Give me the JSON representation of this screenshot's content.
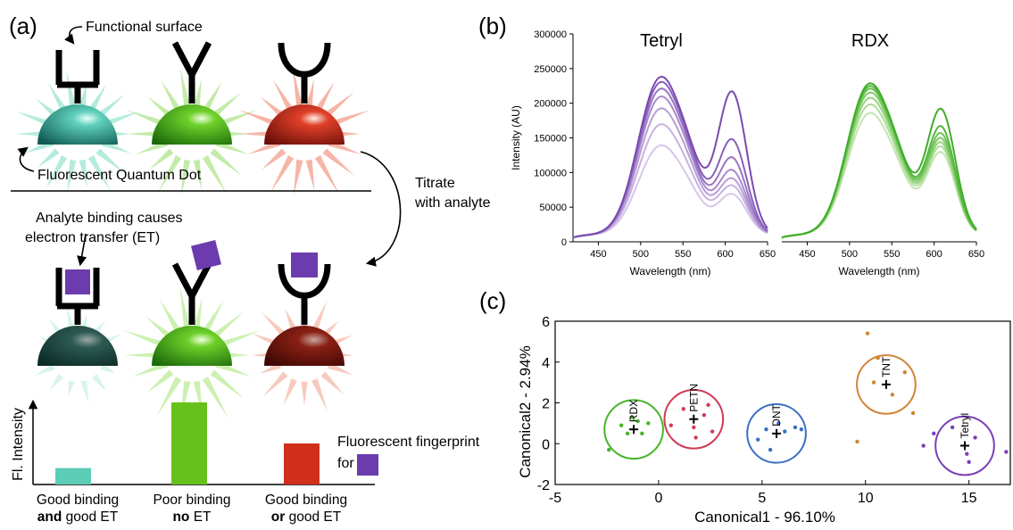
{
  "panel_a": {
    "label": "(a)",
    "functional_surface": "Functional surface",
    "qd_label": "Fluorescent Quantum Dot",
    "titrate_line1": "Titrate",
    "titrate_line2": "with analyte",
    "binding_line1": "Analyte binding causes",
    "binding_line2": "electron transfer (ET)",
    "y_axis": "Fl. Intensity",
    "fingerprint_line1": "Fluorescent fingerprint",
    "fingerprint_line2": "for",
    "bars": [
      {
        "value": 0.2,
        "color": "#5ccdb7",
        "caption1": "Good binding",
        "caption2_bold": "and",
        "caption2_rest": " good ET"
      },
      {
        "value": 1.0,
        "color": "#66c21a",
        "caption1": "Poor binding",
        "caption2_bold": "no",
        "caption2_rest": " ET"
      },
      {
        "value": 0.5,
        "color": "#d0301a",
        "caption1": "Good binding",
        "caption2_bold": "or",
        "caption2_rest": " good ET"
      }
    ],
    "colors": {
      "teal": "#2aa890",
      "green": "#47b51a",
      "red": "#c02a1a",
      "purple": "#6c3cae"
    }
  },
  "panel_b": {
    "label": "(b)",
    "ylabel": "Intensity (AU)",
    "yticks": [
      "0",
      "50000",
      "100000",
      "150000",
      "200000",
      "250000",
      "300000"
    ],
    "charts": [
      {
        "title": "Tetryl",
        "xlabel": "Wavelength (nm)",
        "xticks": [
          "450",
          "500",
          "550",
          "600",
          "650"
        ],
        "color_dark": "#7b4bb0",
        "color_light": "#d6c6ea",
        "series": [
          {
            "peak1": 240000,
            "peak2": 205000
          },
          {
            "peak1": 232000,
            "peak2": 136000
          },
          {
            "peak1": 222000,
            "peak2": 110000
          },
          {
            "peak1": 210000,
            "peak2": 92000
          },
          {
            "peak1": 192000,
            "peak2": 80000
          },
          {
            "peak1": 168000,
            "peak2": 70000
          },
          {
            "peak1": 136000,
            "peak2": 58000
          }
        ]
      },
      {
        "title": "RDX",
        "xlabel": "Wavelength (nm)",
        "xticks": [
          "450",
          "500",
          "550",
          "600",
          "650"
        ],
        "color_dark": "#3fae28",
        "color_light": "#c3e6ae",
        "series": [
          {
            "peak1": 230000,
            "peak2": 180000
          },
          {
            "peak1": 226000,
            "peak2": 155000
          },
          {
            "peak1": 222000,
            "peak2": 145000
          },
          {
            "peak1": 216000,
            "peak2": 138000
          },
          {
            "peak1": 208000,
            "peak2": 132000
          },
          {
            "peak1": 198000,
            "peak2": 126000
          },
          {
            "peak1": 185000,
            "peak2": 118000
          }
        ]
      }
    ]
  },
  "chart_data": {
    "type": "scatter",
    "xlabel": "Canonical1 - 96.10%",
    "ylabel": "Canonical2 - 2.94%",
    "xlim": [
      -5,
      17
    ],
    "ylim": [
      -2,
      6
    ],
    "xticks": [
      "-5",
      "0",
      "5",
      "10",
      "15"
    ],
    "yticks": [
      "-2",
      "0",
      "2",
      "4",
      "6"
    ],
    "groups": [
      {
        "name": "RDX",
        "color": "#46b52a",
        "center": [
          -1.2,
          0.7
        ],
        "radius": 1.2,
        "points": [
          [
            -2.4,
            -0.3
          ],
          [
            -1.5,
            0.5
          ],
          [
            -1.0,
            1.1
          ],
          [
            -0.8,
            0.5
          ],
          [
            -1.3,
            1.3
          ],
          [
            -0.5,
            1.0
          ],
          [
            -1.8,
            0.9
          ]
        ]
      },
      {
        "name": "PETN",
        "color": "#d03a55",
        "center": [
          1.7,
          1.2
        ],
        "radius": 1.2,
        "points": [
          [
            0.6,
            0.9
          ],
          [
            1.2,
            1.7
          ],
          [
            1.8,
            0.3
          ],
          [
            2.2,
            1.4
          ],
          [
            2.4,
            1.9
          ],
          [
            1.7,
            0.8
          ],
          [
            2.6,
            0.6
          ]
        ]
      },
      {
        "name": "DNT",
        "color": "#3a6fc4",
        "center": [
          5.7,
          0.5
        ],
        "radius": 1.2,
        "points": [
          [
            4.8,
            0.2
          ],
          [
            5.4,
            -0.3
          ],
          [
            6.1,
            0.6
          ],
          [
            6.6,
            0.8
          ],
          [
            5.2,
            0.7
          ],
          [
            6.9,
            0.7
          ],
          [
            5.8,
            1.0
          ]
        ]
      },
      {
        "name": "TNT",
        "color": "#d08436",
        "center": [
          11.0,
          2.9
        ],
        "radius": 1.2,
        "points": [
          [
            10.1,
            5.4
          ],
          [
            9.6,
            0.1
          ],
          [
            11.9,
            3.5
          ],
          [
            12.3,
            1.5
          ],
          [
            10.6,
            4.2
          ],
          [
            11.3,
            2.4
          ],
          [
            10.4,
            3.0
          ]
        ]
      },
      {
        "name": "Tetryl",
        "color": "#7a3fb8",
        "center": [
          14.8,
          -0.1
        ],
        "radius": 1.2,
        "points": [
          [
            12.8,
            -0.1
          ],
          [
            13.3,
            0.5
          ],
          [
            14.2,
            0.8
          ],
          [
            15.0,
            -0.9
          ],
          [
            15.3,
            0.3
          ],
          [
            16.8,
            -0.4
          ],
          [
            14.9,
            -0.5
          ]
        ]
      }
    ]
  },
  "panel_c": {
    "label": "(c)"
  }
}
